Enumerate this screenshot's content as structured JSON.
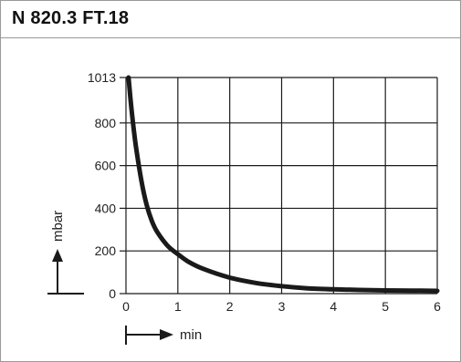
{
  "header": {
    "title": "N 820.3 FT.18"
  },
  "chart_data": {
    "type": "line",
    "title": "N 820.3 FT.18",
    "xlabel": "min",
    "ylabel": "mbar",
    "xlim": [
      0,
      6
    ],
    "ylim": [
      0,
      1013
    ],
    "x_ticks": [
      "0",
      "1",
      "2",
      "3",
      "4",
      "5",
      "6"
    ],
    "y_ticks": [
      "0",
      "200",
      "400",
      "600",
      "800",
      "1013"
    ],
    "y_tick_values": [
      0,
      200,
      400,
      600,
      800,
      1013
    ],
    "grid": true,
    "series": [
      {
        "x": [
          0.05,
          0.1,
          0.15,
          0.2,
          0.3,
          0.4,
          0.5,
          0.6,
          0.8,
          1.0,
          1.2,
          1.5,
          2.0,
          2.5,
          3.0,
          3.5,
          4.0,
          4.5,
          5.0,
          5.5,
          6.0
        ],
        "values": [
          1013,
          880,
          770,
          675,
          525,
          415,
          340,
          290,
          225,
          185,
          150,
          115,
          75,
          50,
          35,
          25,
          20,
          17,
          15,
          14,
          13
        ],
        "color": "#1a1a1a"
      }
    ]
  }
}
